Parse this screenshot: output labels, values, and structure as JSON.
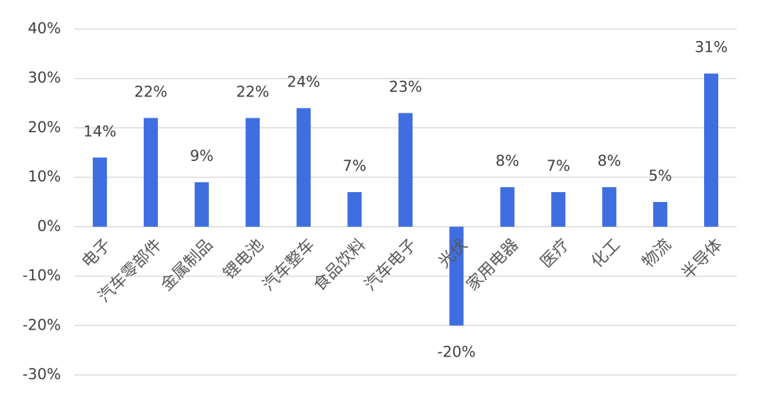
{
  "chart_data": {
    "type": "bar",
    "categories": [
      "电子",
      "汽车零部件",
      "金属制品",
      "锂电池",
      "汽车整车",
      "食品饮料",
      "汽车电子",
      "光伏",
      "家用电器",
      "医疗",
      "化工",
      "物流",
      "半导体"
    ],
    "values": [
      14,
      22,
      9,
      22,
      24,
      7,
      23,
      -20,
      8,
      7,
      8,
      5,
      31
    ],
    "value_labels": [
      "14%",
      "22%",
      "9%",
      "22%",
      "24%",
      "7%",
      "23%",
      "-20%",
      "8%",
      "7%",
      "8%",
      "5%",
      "31%"
    ],
    "color": "#3f6ee0",
    "ylim": [
      -30,
      40
    ],
    "yticks": [
      {
        "value": -30,
        "label": "-30%"
      },
      {
        "value": -20,
        "label": "-20%"
      },
      {
        "value": -10,
        "label": "-10%"
      },
      {
        "value": 0,
        "label": "0%"
      },
      {
        "value": 10,
        "label": "10%"
      },
      {
        "value": 20,
        "label": "20%"
      },
      {
        "value": 30,
        "label": "30%"
      },
      {
        "value": 40,
        "label": "40%"
      }
    ],
    "grid": true
  }
}
